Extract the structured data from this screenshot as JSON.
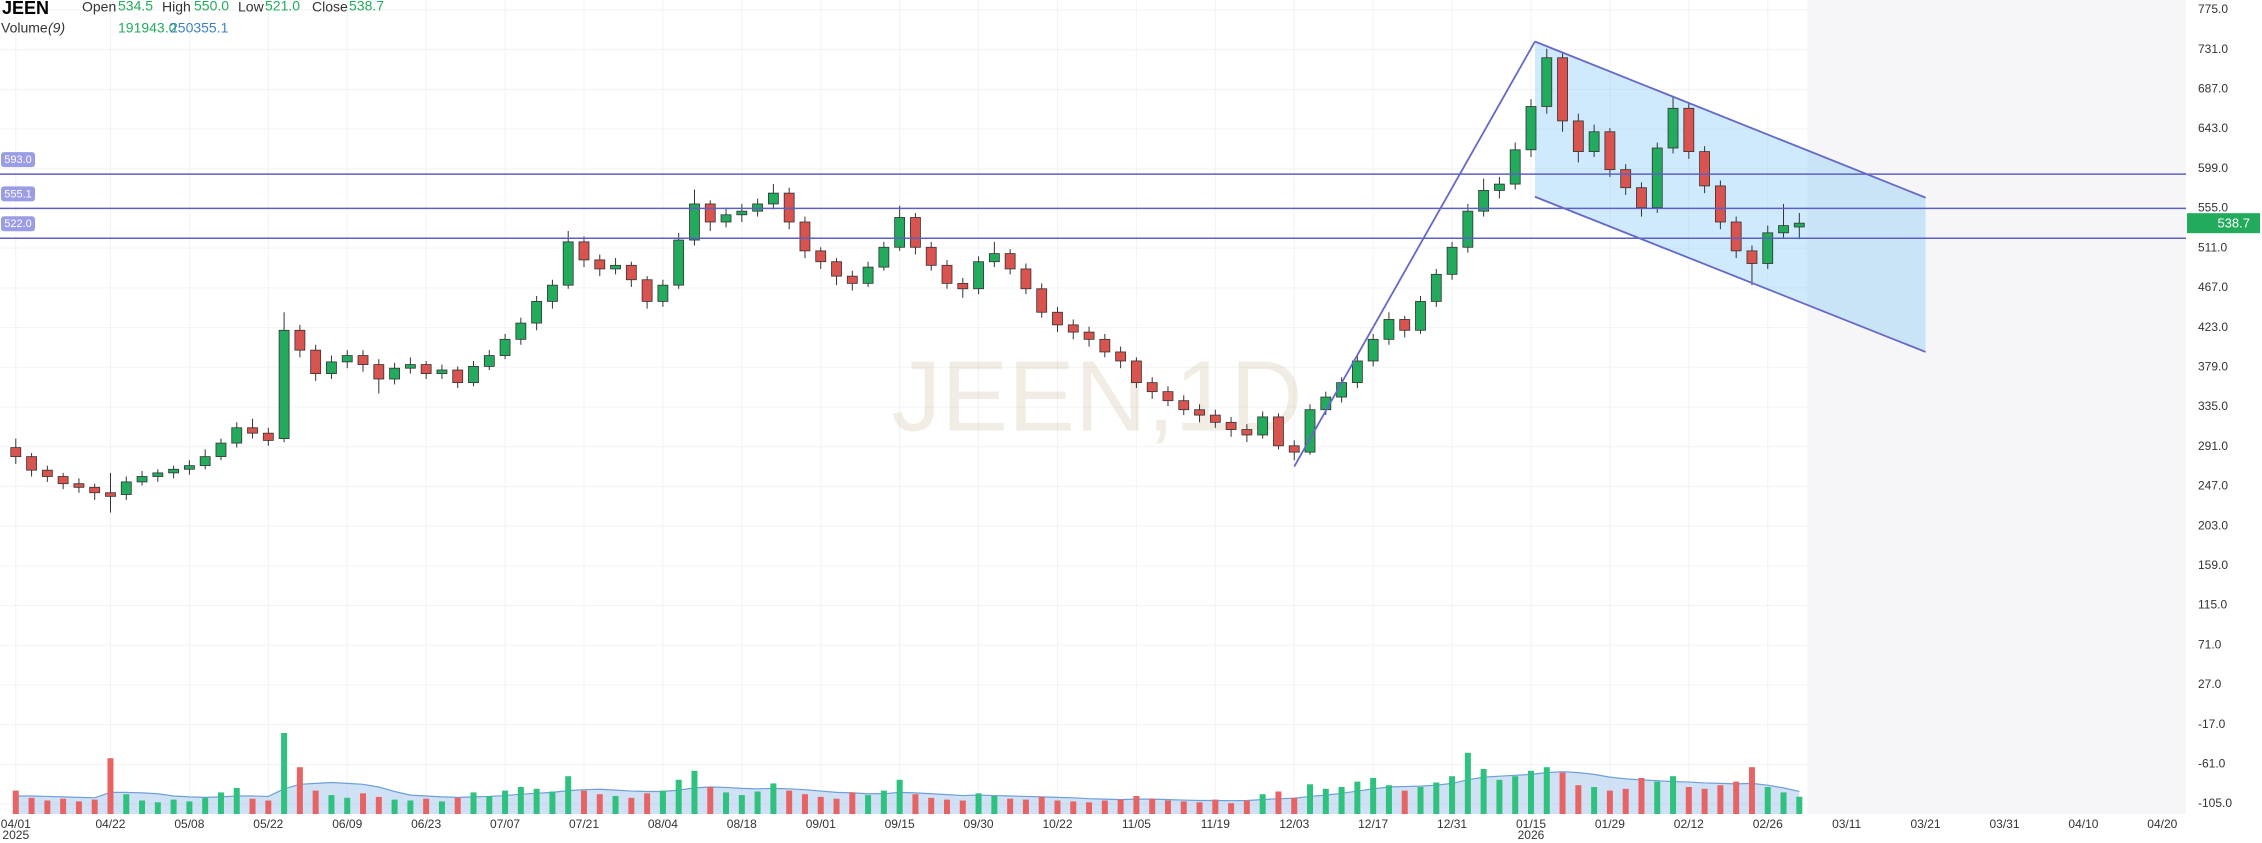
{
  "chart_data": {
    "type": "candlestick",
    "symbol": "JEEN",
    "watermark": "JEEN,1D",
    "quote": {
      "labels": [
        "Open",
        "High",
        "Low",
        "Close"
      ],
      "values": [
        534.5,
        550,
        521,
        538.7
      ],
      "value_labels": [
        "534.5",
        "550.0",
        "521.0",
        "538.7"
      ]
    },
    "volume_legend": {
      "name": "Volume",
      "length_label": "(9)",
      "values": [
        191943,
        250355.1
      ],
      "value_labels": [
        "191943.0",
        "250355.1"
      ]
    },
    "xlim": [
      -2,
      275
    ],
    "ylim": [
      -116,
      786
    ],
    "yticks": [
      {
        "value": 775,
        "label": "775.0"
      },
      {
        "value": 731,
        "label": "731.0"
      },
      {
        "value": 687,
        "label": "687.0"
      },
      {
        "value": 643,
        "label": "643.0"
      },
      {
        "value": 599,
        "label": "599.0"
      },
      {
        "value": 555,
        "label": "555.0"
      },
      {
        "value": 511,
        "label": "511.0"
      },
      {
        "value": 467,
        "label": "467.0"
      },
      {
        "value": 423,
        "label": "423.0"
      },
      {
        "value": 379,
        "label": "379.0"
      },
      {
        "value": 335,
        "label": "335.0"
      },
      {
        "value": 291,
        "label": "291.0"
      },
      {
        "value": 247,
        "label": "247.0"
      },
      {
        "value": 203,
        "label": "203.0"
      },
      {
        "value": 159,
        "label": "159.0"
      },
      {
        "value": 115,
        "label": "115.0"
      },
      {
        "value": 71,
        "label": "71.0"
      },
      {
        "value": 27,
        "label": "27.0"
      },
      {
        "value": -17,
        "label": "-17.0"
      },
      {
        "value": -61,
        "label": "-61.0"
      },
      {
        "value": -105,
        "label": "-105.0"
      }
    ],
    "xticks": [
      {
        "value": 0,
        "label": "04/01",
        "sublabel": "2025"
      },
      {
        "value": 12,
        "label": "04/22"
      },
      {
        "value": 22,
        "label": "05/08"
      },
      {
        "value": 32,
        "label": "05/22"
      },
      {
        "value": 42,
        "label": "06/09"
      },
      {
        "value": 52,
        "label": "06/23"
      },
      {
        "value": 62,
        "label": "07/07"
      },
      {
        "value": 72,
        "label": "07/21"
      },
      {
        "value": 82,
        "label": "08/04"
      },
      {
        "value": 92,
        "label": "08/18"
      },
      {
        "value": 102,
        "label": "09/01"
      },
      {
        "value": 112,
        "label": "09/15"
      },
      {
        "value": 122,
        "label": "09/30"
      },
      {
        "value": 132,
        "label": "10/22"
      },
      {
        "value": 142,
        "label": "11/05"
      },
      {
        "value": 152,
        "label": "11/19"
      },
      {
        "value": 162,
        "label": "12/03"
      },
      {
        "value": 172,
        "label": "12/17"
      },
      {
        "value": 182,
        "label": "12/31"
      },
      {
        "value": 192,
        "label": "01/15",
        "sublabel": "2026"
      },
      {
        "value": 202,
        "label": "01/29"
      },
      {
        "value": 212,
        "label": "02/12"
      },
      {
        "value": 222,
        "label": "02/26"
      },
      {
        "value": 232,
        "label": "03/11"
      },
      {
        "value": 242,
        "label": "03/21"
      },
      {
        "value": 252,
        "label": "03/31"
      },
      {
        "value": 262,
        "label": "04/10"
      },
      {
        "value": 272,
        "label": "04/20"
      }
    ],
    "up_color": "#22ab5c",
    "down_color": "#d9534f",
    "ohlc": [
      [
        290,
        300,
        272,
        280
      ],
      [
        280,
        284,
        258,
        265
      ],
      [
        265,
        270,
        252,
        258
      ],
      [
        258,
        262,
        244,
        250
      ],
      [
        250,
        256,
        240,
        246
      ],
      [
        246,
        250,
        232,
        240
      ],
      [
        240,
        262,
        218,
        236
      ],
      [
        238,
        258,
        232,
        252
      ],
      [
        252,
        264,
        248,
        258
      ],
      [
        258,
        266,
        252,
        262
      ],
      [
        262,
        270,
        256,
        266
      ],
      [
        266,
        276,
        260,
        270
      ],
      [
        270,
        288,
        266,
        280
      ],
      [
        280,
        300,
        276,
        295
      ],
      [
        295,
        318,
        290,
        312
      ],
      [
        312,
        322,
        300,
        306
      ],
      [
        306,
        312,
        292,
        298
      ],
      [
        300,
        440,
        296,
        420
      ],
      [
        420,
        426,
        390,
        398
      ],
      [
        398,
        404,
        364,
        372
      ],
      [
        372,
        392,
        366,
        385
      ],
      [
        385,
        398,
        378,
        392
      ],
      [
        392,
        398,
        374,
        382
      ],
      [
        382,
        388,
        350,
        366
      ],
      [
        366,
        384,
        360,
        378
      ],
      [
        378,
        390,
        372,
        382
      ],
      [
        382,
        386,
        366,
        372
      ],
      [
        372,
        382,
        366,
        376
      ],
      [
        376,
        380,
        356,
        362
      ],
      [
        362,
        386,
        358,
        380
      ],
      [
        380,
        398,
        376,
        392
      ],
      [
        392,
        416,
        388,
        410
      ],
      [
        410,
        434,
        404,
        428
      ],
      [
        428,
        458,
        420,
        452
      ],
      [
        452,
        476,
        444,
        470
      ],
      [
        470,
        530,
        466,
        518
      ],
      [
        518,
        524,
        490,
        498
      ],
      [
        498,
        504,
        480,
        488
      ],
      [
        488,
        500,
        482,
        492
      ],
      [
        492,
        496,
        468,
        476
      ],
      [
        476,
        480,
        444,
        452
      ],
      [
        452,
        476,
        446,
        470
      ],
      [
        470,
        528,
        466,
        520
      ],
      [
        520,
        576,
        514,
        560
      ],
      [
        560,
        564,
        530,
        540
      ],
      [
        540,
        556,
        534,
        548
      ],
      [
        548,
        560,
        540,
        552
      ],
      [
        552,
        566,
        546,
        560
      ],
      [
        560,
        582,
        554,
        572
      ],
      [
        572,
        578,
        532,
        540
      ],
      [
        540,
        546,
        500,
        508
      ],
      [
        508,
        512,
        488,
        496
      ],
      [
        496,
        500,
        470,
        480
      ],
      [
        480,
        486,
        464,
        472
      ],
      [
        472,
        496,
        468,
        490
      ],
      [
        490,
        518,
        486,
        512
      ],
      [
        512,
        558,
        508,
        545
      ],
      [
        545,
        550,
        504,
        512
      ],
      [
        512,
        518,
        486,
        492
      ],
      [
        492,
        498,
        466,
        472
      ],
      [
        472,
        478,
        456,
        466
      ],
      [
        466,
        502,
        460,
        496
      ],
      [
        496,
        518,
        490,
        505
      ],
      [
        505,
        510,
        482,
        488
      ],
      [
        488,
        494,
        460,
        466
      ],
      [
        466,
        472,
        434,
        440
      ],
      [
        440,
        446,
        418,
        426
      ],
      [
        426,
        432,
        410,
        418
      ],
      [
        418,
        424,
        402,
        410
      ],
      [
        410,
        416,
        390,
        396
      ],
      [
        396,
        402,
        378,
        386
      ],
      [
        386,
        390,
        356,
        362
      ],
      [
        362,
        368,
        344,
        352
      ],
      [
        352,
        358,
        336,
        342
      ],
      [
        342,
        348,
        326,
        332
      ],
      [
        332,
        338,
        318,
        326
      ],
      [
        326,
        332,
        312,
        318
      ],
      [
        318,
        324,
        302,
        310
      ],
      [
        310,
        316,
        296,
        304
      ],
      [
        304,
        330,
        300,
        324
      ],
      [
        324,
        328,
        288,
        292
      ],
      [
        292,
        298,
        276,
        285
      ],
      [
        285,
        338,
        282,
        332
      ],
      [
        332,
        352,
        326,
        346
      ],
      [
        346,
        368,
        340,
        362
      ],
      [
        362,
        392,
        356,
        386
      ],
      [
        386,
        416,
        380,
        410
      ],
      [
        410,
        440,
        404,
        432
      ],
      [
        432,
        436,
        412,
        420
      ],
      [
        420,
        458,
        416,
        452
      ],
      [
        452,
        488,
        446,
        482
      ],
      [
        482,
        518,
        476,
        512
      ],
      [
        512,
        560,
        506,
        552
      ],
      [
        552,
        588,
        546,
        575
      ],
      [
        575,
        590,
        566,
        582
      ],
      [
        582,
        628,
        576,
        620
      ],
      [
        620,
        676,
        612,
        668
      ],
      [
        668,
        732,
        660,
        722
      ],
      [
        722,
        728,
        640,
        652
      ],
      [
        652,
        660,
        606,
        618
      ],
      [
        618,
        648,
        612,
        640
      ],
      [
        640,
        644,
        590,
        598
      ],
      [
        598,
        604,
        570,
        578
      ],
      [
        578,
        584,
        546,
        556
      ],
      [
        556,
        628,
        550,
        622
      ],
      [
        622,
        678,
        616,
        666
      ],
      [
        666,
        672,
        610,
        618
      ],
      [
        618,
        624,
        572,
        580
      ],
      [
        580,
        586,
        532,
        540
      ],
      [
        540,
        546,
        500,
        508
      ],
      [
        508,
        514,
        470,
        494
      ],
      [
        494,
        536,
        488,
        528
      ],
      [
        528,
        560,
        522,
        536
      ],
      [
        534.5,
        550,
        521,
        538.7
      ]
    ],
    "volume": [
      260000,
      180000,
      150000,
      170000,
      140000,
      160000,
      620000,
      220000,
      150000,
      130000,
      160000,
      140000,
      180000,
      240000,
      290000,
      170000,
      150000,
      900000,
      520000,
      260000,
      210000,
      180000,
      230000,
      190000,
      160000,
      150000,
      170000,
      140000,
      180000,
      240000,
      200000,
      260000,
      300000,
      280000,
      250000,
      420000,
      260000,
      220000,
      200000,
      180000,
      230000,
      260000,
      380000,
      480000,
      300000,
      240000,
      210000,
      250000,
      340000,
      260000,
      220000,
      190000,
      170000,
      240000,
      210000,
      260000,
      380000,
      220000,
      180000,
      160000,
      150000,
      230000,
      200000,
      170000,
      160000,
      190000,
      150000,
      140000,
      130000,
      150000,
      160000,
      200000,
      170000,
      150000,
      140000,
      130000,
      160000,
      120000,
      150000,
      220000,
      250000,
      180000,
      330000,
      280000,
      300000,
      360000,
      400000,
      320000,
      260000,
      300000,
      350000,
      420000,
      680000,
      500000,
      380000,
      420000,
      480000,
      520000,
      460000,
      320000,
      300000,
      260000,
      280000,
      400000,
      360000,
      420000,
      300000,
      280000,
      320000,
      360000,
      520000,
      300000,
      240000,
      191943
    ],
    "volume_ma": [
      200000,
      200000,
      195000,
      190000,
      185000,
      180000,
      240000,
      240000,
      235000,
      225000,
      200000,
      190000,
      185000,
      190000,
      200000,
      200000,
      195000,
      280000,
      330000,
      340000,
      350000,
      340000,
      330000,
      300000,
      250000,
      210000,
      200000,
      190000,
      185000,
      190000,
      195000,
      205000,
      220000,
      230000,
      240000,
      260000,
      270000,
      275000,
      265000,
      255000,
      250000,
      250000,
      265000,
      290000,
      300000,
      295000,
      285000,
      280000,
      285000,
      280000,
      270000,
      255000,
      240000,
      235000,
      225000,
      225000,
      240000,
      235000,
      225000,
      215000,
      205000,
      210000,
      205000,
      200000,
      195000,
      190000,
      185000,
      180000,
      170000,
      165000,
      160000,
      165000,
      165000,
      160000,
      155000,
      150000,
      150000,
      148000,
      150000,
      160000,
      170000,
      175000,
      195000,
      210000,
      230000,
      255000,
      280000,
      300000,
      305000,
      310000,
      320000,
      340000,
      380000,
      410000,
      420000,
      430000,
      440000,
      460000,
      470000,
      460000,
      440000,
      410000,
      390000,
      380000,
      370000,
      360000,
      355000,
      345000,
      340000,
      335000,
      340000,
      320000,
      290000,
      250355.1
    ],
    "hlines": [
      {
        "value": 593,
        "label": "593.0"
      },
      {
        "value": 555.1,
        "label": "555.1"
      },
      {
        "value": 522,
        "label": "522.0"
      }
    ],
    "trendlines": [
      {
        "points": [
          [
            162,
            269
          ],
          [
            192.5,
            740
          ]
        ]
      },
      {
        "points": [
          [
            192.5,
            740
          ],
          [
            242,
            567
          ]
        ]
      },
      {
        "points": [
          [
            192.5,
            568
          ],
          [
            242,
            396
          ]
        ]
      }
    ],
    "grid": true
  }
}
